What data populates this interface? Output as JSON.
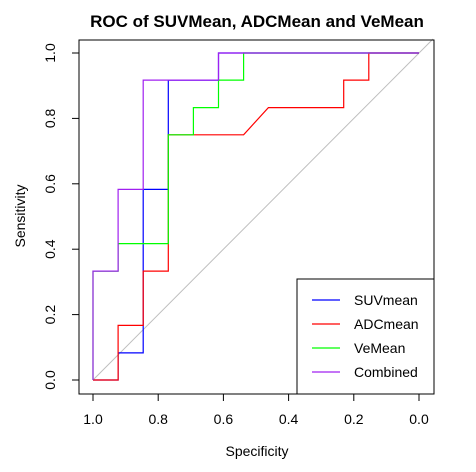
{
  "chart_data": {
    "type": "line",
    "title": "ROC of SUVMean, ADCMean and VeMean",
    "xlabel": "Specificity",
    "ylabel": "Sensitivity",
    "xlim": [
      1.0,
      0.0
    ],
    "ylim": [
      0.0,
      1.0
    ],
    "x_reversed": true,
    "xticks": [
      1.0,
      0.8,
      0.6,
      0.4,
      0.2,
      0.0
    ],
    "xtick_labels": [
      "1.0",
      "0.8",
      "0.6",
      "0.4",
      "0.2",
      "0.0"
    ],
    "yticks": [
      0.0,
      0.2,
      0.4,
      0.6,
      0.8,
      1.0
    ],
    "ytick_labels": [
      "0.0",
      "0.2",
      "0.4",
      "0.6",
      "0.8",
      "1.0"
    ],
    "grid": false,
    "legend_position": "bottom-right",
    "reference_line": {
      "x": [
        1.0,
        0.0
      ],
      "y": [
        0.0,
        1.0
      ],
      "color": "#bebebe"
    },
    "series": [
      {
        "name": "SUVmean",
        "color": "#0000ff",
        "x": [
          1.0,
          1.0,
          0.923,
          0.923,
          0.846,
          0.846,
          0.769,
          0.769,
          0.615,
          0.615,
          0.0
        ],
        "y": [
          0.0,
          0.0,
          0.0,
          0.083,
          0.083,
          0.583,
          0.583,
          0.917,
          0.917,
          1.0,
          1.0
        ]
      },
      {
        "name": "ADCmean",
        "color": "#ff0000",
        "x": [
          1.0,
          0.923,
          0.923,
          0.846,
          0.846,
          0.769,
          0.769,
          0.538,
          0.462,
          0.231,
          0.231,
          0.154,
          0.154,
          0.0
        ],
        "y": [
          0.0,
          0.0,
          0.167,
          0.167,
          0.333,
          0.333,
          0.75,
          0.75,
          0.833,
          0.833,
          0.917,
          0.917,
          1.0,
          1.0
        ]
      },
      {
        "name": "VeMean",
        "color": "#00ff00",
        "x": [
          1.0,
          1.0,
          0.923,
          0.923,
          0.769,
          0.769,
          0.692,
          0.692,
          0.615,
          0.615,
          0.538,
          0.538,
          0.0
        ],
        "y": [
          0.0,
          0.333,
          0.333,
          0.417,
          0.417,
          0.75,
          0.75,
          0.833,
          0.833,
          0.917,
          0.917,
          1.0,
          1.0
        ]
      },
      {
        "name": "Combined",
        "color": "#a020f0",
        "x": [
          1.0,
          1.0,
          0.923,
          0.923,
          0.846,
          0.846,
          0.615,
          0.615,
          0.0
        ],
        "y": [
          0.0,
          0.333,
          0.333,
          0.583,
          0.583,
          0.917,
          0.917,
          1.0,
          1.0
        ]
      }
    ]
  }
}
